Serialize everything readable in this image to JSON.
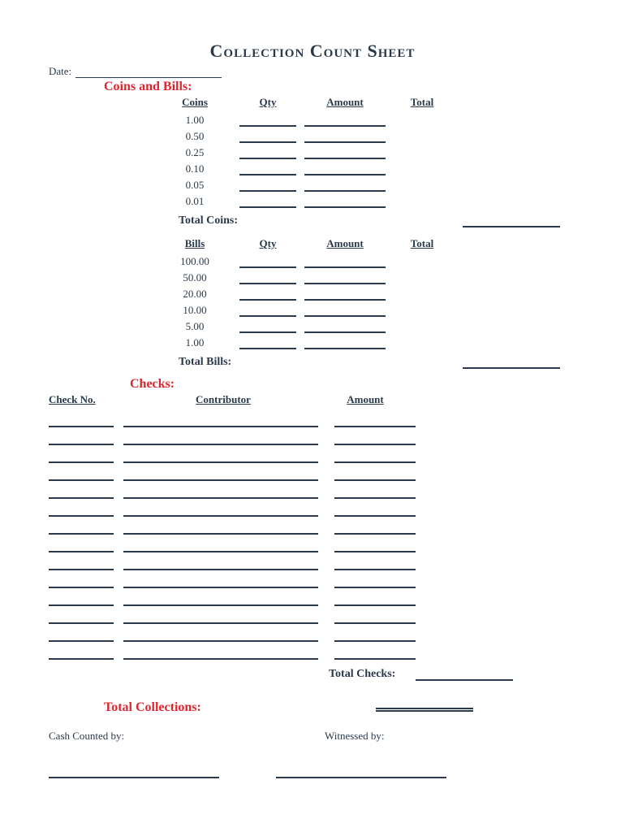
{
  "title": "Collection Count Sheet",
  "date_label": "Date:",
  "sections": {
    "coins_bills_heading": "Coins and Bills:",
    "coins": {
      "header": {
        "denom": "Coins",
        "qty": "Qty",
        "amount": "Amount",
        "total": "Total"
      },
      "denominations": [
        "1.00",
        "0.50",
        "0.25",
        "0.10",
        "0.05",
        "0.01"
      ],
      "subtotal_label": "Total Coins:"
    },
    "bills": {
      "header": {
        "denom": "Bills",
        "qty": "Qty",
        "amount": "Amount",
        "total": "Total"
      },
      "denominations": [
        "100.00",
        "50.00",
        "20.00",
        "10.00",
        "5.00",
        "1.00"
      ],
      "subtotal_label": "Total Bills:"
    },
    "checks": {
      "heading": "Checks:",
      "header": {
        "no": "Check No.",
        "contrib": "Contributor",
        "amount": "Amount"
      },
      "row_count": 14,
      "subtotal_label": "Total Checks:"
    }
  },
  "total_collections_label": "Total Collections:",
  "signatures": {
    "counted_by": "Cash Counted by:",
    "witnessed_by": "Witnessed by:"
  },
  "colors": {
    "text": "#2a3a4a",
    "accent": "#dc2730",
    "line": "#2a3a4a",
    "background": "#ffffff"
  },
  "fonts": {
    "title_pt": 22,
    "section_pt": 16,
    "body_pt": 13
  }
}
